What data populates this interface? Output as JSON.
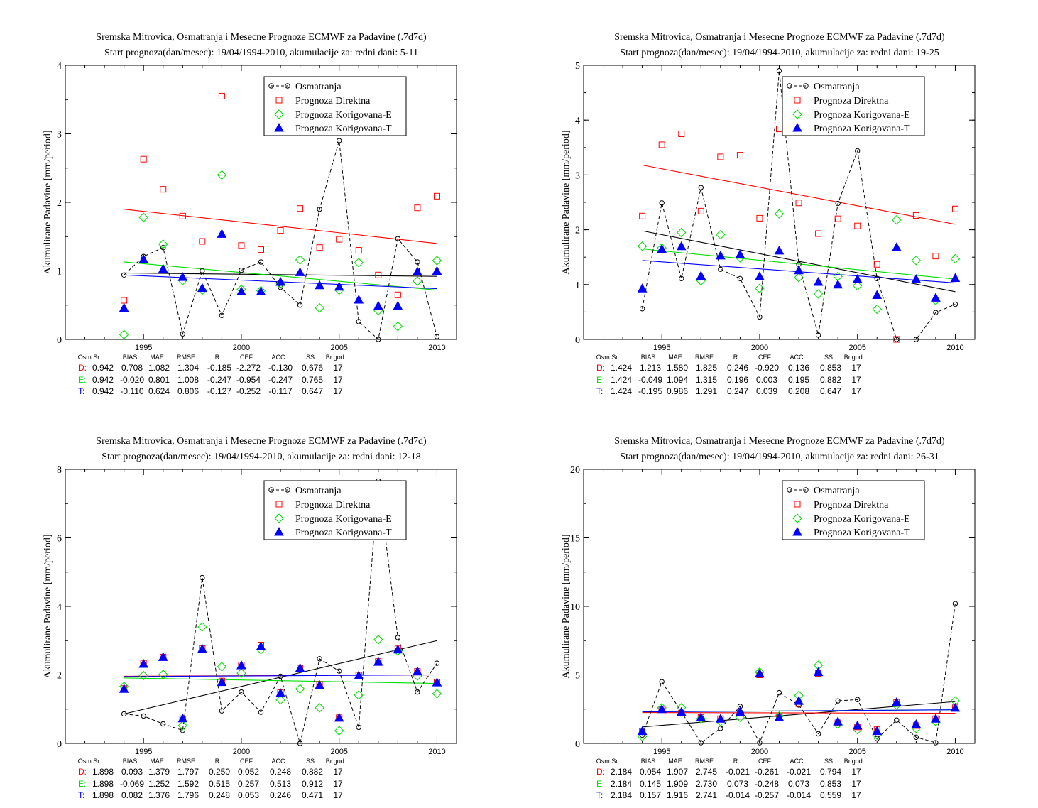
{
  "colors": {
    "obs": "#000000",
    "direct": "#ff0000",
    "corrE": "#00dd00",
    "corrT": "#0000ff",
    "frame": "#000000"
  },
  "legend_labels": {
    "obs": "Osmatranja",
    "direct": "Prognoza Direktna",
    "corrE": "Prognoza Korigovana-E",
    "corrT": "Prognoza Korigovana-T"
  },
  "ylabel": "Akumulirane Padavine [mm/period]",
  "stats_headers": [
    "Osm.Sr.",
    "BIAS",
    "MAE",
    "RMSE",
    "R",
    "CEF",
    "ACC",
    "SS",
    "Br.god."
  ],
  "row_labels": [
    "D:",
    "E:",
    "T:"
  ],
  "chart_data": [
    {
      "type": "scatter",
      "title": "Sremska Mitrovica, Osmatranja i Mesecne Prognoze ECMWF za Padavine (.7d7d)",
      "subtitle": "Start prognoza(dan/mesec): 19/04/1994-2010, akumulacije za: redni dani: 5-11",
      "xlabel": "",
      "ylabel": "Akumulirane Padavine [mm/period]",
      "xlim": [
        1991,
        2011
      ],
      "ylim": [
        0,
        4
      ],
      "xticks": [
        1995,
        2000,
        2005,
        2010
      ],
      "yticks": [
        0,
        1,
        2,
        3,
        4
      ],
      "legend": "top-right",
      "x": [
        1994,
        1995,
        1996,
        1997,
        1998,
        1999,
        2000,
        2001,
        2002,
        2003,
        2004,
        2005,
        2006,
        2007,
        2008,
        2009,
        2010
      ],
      "series": [
        {
          "name": "Osmatranja",
          "values": [
            0.94,
            1.21,
            1.34,
            0.08,
            1.0,
            0.35,
            1.01,
            1.13,
            0.76,
            0.5,
            1.9,
            2.9,
            0.26,
            0.0,
            1.47,
            1.13,
            0.04
          ]
        },
        {
          "name": "Prognoza Direktna",
          "values": [
            0.57,
            2.63,
            2.19,
            1.8,
            1.43,
            3.55,
            1.37,
            1.31,
            1.59,
            1.91,
            1.34,
            1.46,
            1.3,
            0.94,
            0.65,
            1.92,
            2.09
          ]
        },
        {
          "name": "Prognoza Korigovana-E",
          "values": [
            0.07,
            1.78,
            1.39,
            0.86,
            0.72,
            2.4,
            0.73,
            0.71,
            0.81,
            1.16,
            0.46,
            0.72,
            1.12,
            0.42,
            0.19,
            0.85,
            1.15
          ]
        },
        {
          "name": "Prognoza Korigovana-T",
          "values": [
            0.46,
            1.17,
            1.03,
            0.91,
            0.75,
            1.54,
            0.7,
            0.7,
            0.84,
            0.98,
            0.79,
            0.77,
            0.58,
            0.49,
            0.49,
            0.99,
            1.0
          ]
        }
      ],
      "trends": [
        {
          "series": "Osmatranja",
          "y_start": 0.97,
          "y_end": 0.92
        },
        {
          "series": "Prognoza Direktna",
          "y_start": 1.9,
          "y_end": 1.4
        },
        {
          "series": "Prognoza Korigovana-E",
          "y_start": 1.13,
          "y_end": 0.72
        },
        {
          "series": "Prognoza Korigovana-T",
          "y_start": 0.94,
          "y_end": 0.74
        }
      ],
      "stats": [
        [
          "0.942",
          "0.708",
          "1.082",
          "1.304",
          "-0.185",
          "-2.272",
          "-0.130",
          "0.676",
          "17"
        ],
        [
          "0.942",
          "-0.020",
          "0.801",
          "1.008",
          "-0.247",
          "-0.954",
          "-0.247",
          "0.765",
          "17"
        ],
        [
          "0.942",
          "-0.110",
          "0.624",
          "0.806",
          "-0.127",
          "-0.252",
          "-0.117",
          "0.647",
          "17"
        ]
      ]
    },
    {
      "type": "scatter",
      "title": "Sremska Mitrovica, Osmatranja i Mesecne Prognoze ECMWF za Padavine (.7d7d)",
      "subtitle": "Start prognoza(dan/mesec): 19/04/1994-2010, akumulacije za: redni dani: 19-25",
      "xlabel": "",
      "ylabel": "Akumulirane Padavine [mm/period]",
      "xlim": [
        1991,
        2011
      ],
      "ylim": [
        0,
        5
      ],
      "xticks": [
        1995,
        2000,
        2005,
        2010
      ],
      "yticks": [
        0,
        1,
        2,
        3,
        4,
        5
      ],
      "legend": "top-right",
      "x": [
        1994,
        1995,
        1996,
        1997,
        1998,
        1999,
        2000,
        2001,
        2002,
        2003,
        2004,
        2005,
        2006,
        2007,
        2008,
        2009,
        2010
      ],
      "series": [
        {
          "name": "Osmatranja",
          "values": [
            0.56,
            2.49,
            1.11,
            2.77,
            1.28,
            1.11,
            0.41,
            4.9,
            1.37,
            0.08,
            2.48,
            3.44,
            1.11,
            0.0,
            0.0,
            0.49,
            0.64
          ]
        },
        {
          "name": "Prognoza Direktna",
          "values": [
            2.25,
            3.55,
            3.75,
            2.34,
            3.33,
            3.36,
            2.21,
            3.84,
            2.49,
            1.93,
            2.2,
            2.07,
            1.37,
            0.0,
            2.26,
            1.52,
            2.38
          ]
        },
        {
          "name": "Prognoza Korigovana-E",
          "values": [
            1.7,
            1.67,
            1.95,
            1.07,
            1.91,
            1.49,
            0.93,
            2.29,
            1.13,
            0.83,
            1.15,
            0.98,
            0.55,
            2.18,
            1.44,
            0.71,
            1.47
          ]
        },
        {
          "name": "Prognoza Korigovana-T",
          "values": [
            0.93,
            1.65,
            1.7,
            1.16,
            1.53,
            1.55,
            1.15,
            1.62,
            1.26,
            1.05,
            1.0,
            1.1,
            0.81,
            1.68,
            1.1,
            0.76,
            1.12
          ]
        }
      ],
      "trends": [
        {
          "series": "Osmatranja",
          "y_start": 1.98,
          "y_end": 0.87
        },
        {
          "series": "Prognoza Direktna",
          "y_start": 3.18,
          "y_end": 2.1
        },
        {
          "series": "Prognoza Korigovana-E",
          "y_start": 1.65,
          "y_end": 1.1
        },
        {
          "series": "Prognoza Korigovana-T",
          "y_start": 1.44,
          "y_end": 1.03
        }
      ],
      "stats": [
        [
          "1.424",
          "1.213",
          "1.580",
          "1.825",
          "0.246",
          "-0.920",
          "0.136",
          "0.853",
          "17"
        ],
        [
          "1.424",
          "-0.049",
          "1.094",
          "1.315",
          "0.196",
          "0.003",
          "0.195",
          "0.882",
          "17"
        ],
        [
          "1.424",
          "-0.195",
          "0.986",
          "1.291",
          "0.247",
          "0.039",
          "0.208",
          "0.647",
          "17"
        ]
      ]
    },
    {
      "type": "scatter",
      "title": "Sremska Mitrovica, Osmatranja i Mesecne Prognoze ECMWF za Padavine (.7d7d)",
      "subtitle": "Start prognoza(dan/mesec): 19/04/1994-2010, akumulacije za: redni dani: 12-18",
      "xlabel": "",
      "ylabel": "Akumulirane Padavine [mm/period]",
      "xlim": [
        1991,
        2011
      ],
      "ylim": [
        0,
        8
      ],
      "xticks": [
        1995,
        2000,
        2005,
        2010
      ],
      "yticks": [
        0,
        2,
        4,
        6,
        8
      ],
      "legend": "top-right",
      "x": [
        1994,
        1995,
        1996,
        1997,
        1998,
        1999,
        2000,
        2001,
        2002,
        2003,
        2004,
        2005,
        2006,
        2007,
        2008,
        2009,
        2010
      ],
      "series": [
        {
          "name": "Osmatranja",
          "values": [
            0.86,
            0.8,
            0.57,
            0.38,
            4.84,
            0.95,
            1.5,
            0.91,
            1.96,
            0.0,
            2.47,
            2.11,
            0.47,
            7.66,
            3.09,
            1.5,
            2.34
          ]
        },
        {
          "name": "Prognoza Direktna",
          "values": [
            1.6,
            2.34,
            2.52,
            0.72,
            2.77,
            1.82,
            2.29,
            2.87,
            1.48,
            2.2,
            1.72,
            0.75,
            1.99,
            2.39,
            2.76,
            2.1,
            1.79
          ]
        },
        {
          "name": "Prognoza Korigovana-E",
          "values": [
            1.66,
            1.98,
            2.01,
            0.52,
            3.4,
            2.24,
            2.05,
            2.74,
            1.27,
            1.59,
            1.04,
            0.37,
            1.41,
            3.03,
            2.7,
            1.97,
            1.45
          ]
        },
        {
          "name": "Prognoza Korigovana-T",
          "values": [
            1.59,
            2.32,
            2.52,
            0.73,
            2.76,
            1.79,
            2.28,
            2.83,
            1.47,
            2.2,
            1.7,
            0.75,
            1.98,
            2.38,
            2.74,
            2.1,
            1.78
          ]
        }
      ],
      "trends": [
        {
          "series": "Osmatranja",
          "y_start": 0.86,
          "y_end": 3.0
        },
        {
          "series": "Prognoza Direktna",
          "y_start": 1.96,
          "y_end": 2.0
        },
        {
          "series": "Prognoza Korigovana-E",
          "y_start": 1.91,
          "y_end": 1.75
        },
        {
          "series": "Prognoza Korigovana-T",
          "y_start": 1.95,
          "y_end": 2.0
        }
      ],
      "stats": [
        [
          "1.898",
          "0.093",
          "1.379",
          "1.797",
          "0.250",
          "0.052",
          "0.248",
          "0.882",
          "17"
        ],
        [
          "1.898",
          "-0.069",
          "1.252",
          "1.592",
          "0.515",
          "0.257",
          "0.513",
          "0.912",
          "17"
        ],
        [
          "1.898",
          "0.082",
          "1.376",
          "1.796",
          "0.248",
          "0.053",
          "0.246",
          "0.471",
          "17"
        ]
      ]
    },
    {
      "type": "scatter",
      "title": "Sremska Mitrovica, Osmatranja i Mesecne Prognoze ECMWF za Padavine (.7d7d)",
      "subtitle": "Start prognoza(dan/mesec): 19/04/1994-2010, akumulacije za: redni dani: 26-31",
      "xlabel": "",
      "ylabel": "Akumulirane Padavine [mm/period]",
      "xlim": [
        1991,
        2011
      ],
      "ylim": [
        0,
        20
      ],
      "xticks": [
        1995,
        2000,
        2005,
        2010
      ],
      "yticks": [
        0,
        5,
        10,
        15,
        20
      ],
      "legend": "top-right",
      "x": [
        1994,
        1995,
        1996,
        1997,
        1998,
        1999,
        2000,
        2001,
        2002,
        2003,
        2004,
        2005,
        2006,
        2007,
        2008,
        2009,
        2010
      ],
      "series": [
        {
          "name": "Osmatranja",
          "values": [
            0.6,
            4.5,
            2.3,
            0.05,
            1.1,
            2.7,
            0.05,
            3.7,
            2.8,
            0.7,
            3.1,
            3.2,
            0.35,
            1.7,
            0.45,
            0.05,
            10.2
          ]
        },
        {
          "name": "Prognoza Direktna",
          "values": [
            0.9,
            2.5,
            2.2,
            1.9,
            1.8,
            2.3,
            5.0,
            1.9,
            2.9,
            5.1,
            1.5,
            1.2,
            1.0,
            3.0,
            1.3,
            1.8,
            2.6
          ]
        },
        {
          "name": "Prognoza Korigovana-E",
          "values": [
            0.5,
            2.6,
            2.6,
            1.8,
            1.6,
            1.9,
            5.2,
            2.0,
            3.5,
            5.7,
            1.4,
            1.0,
            0.6,
            2.8,
            1.1,
            1.6,
            3.1
          ]
        },
        {
          "name": "Prognoza Korigovana-T",
          "values": [
            0.9,
            2.5,
            2.3,
            1.9,
            1.8,
            2.3,
            5.1,
            1.9,
            3.1,
            5.2,
            1.6,
            1.3,
            0.9,
            3.0,
            1.4,
            1.8,
            2.6
          ]
        }
      ],
      "trends": [
        {
          "series": "Osmatranja",
          "y_start": 1.2,
          "y_end": 3.05
        },
        {
          "series": "Prognoza Direktna",
          "y_start": 2.25,
          "y_end": 2.2
        },
        {
          "series": "Prognoza Korigovana-E",
          "y_start": 2.3,
          "y_end": 2.45
        },
        {
          "series": "Prognoza Korigovana-T",
          "y_start": 2.3,
          "y_end": 2.45
        }
      ],
      "stats": [
        [
          "2.184",
          "0.054",
          "1.907",
          "2.745",
          "-0.021",
          "-0.261",
          "-0.021",
          "0.794",
          "17"
        ],
        [
          "2.184",
          "0.145",
          "1.909",
          "2.730",
          "0.073",
          "-0.248",
          "0.073",
          "0.853",
          "17"
        ],
        [
          "2.184",
          "0.157",
          "1.916",
          "2.741",
          "-0.014",
          "-0.257",
          "-0.014",
          "0.559",
          "17"
        ]
      ]
    }
  ]
}
